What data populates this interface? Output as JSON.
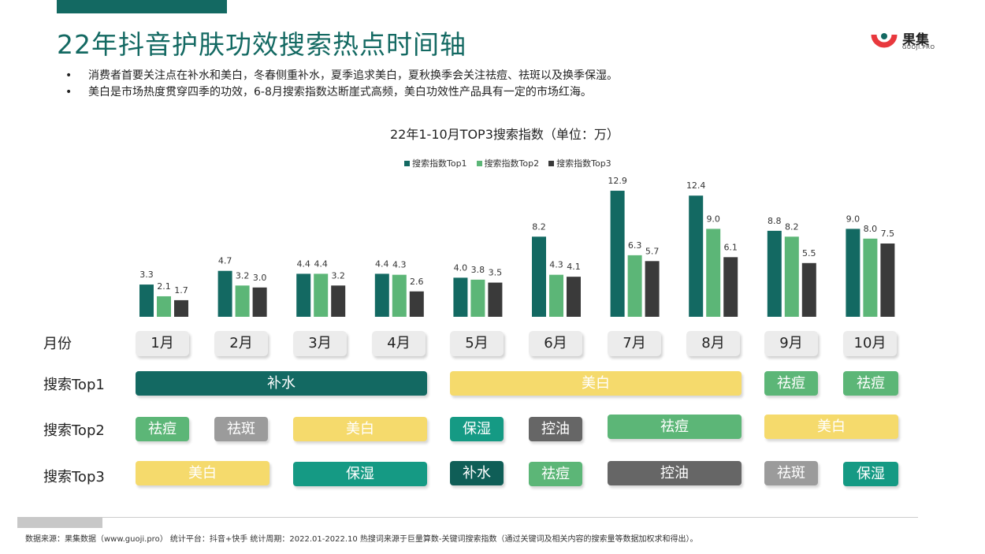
{
  "title": "22年抖音护肤功效搜索热点时间轴",
  "logo": {
    "name": "果集",
    "sub": "GUOJI.PRO"
  },
  "bullets": [
    "消费者首要关注点在补水和美白，冬春侧重补水，夏季追求美白，夏秋换季会关注祛痘、祛斑以及换季保湿。",
    "美白是市场热度贯穿四季的功效，6-8月搜索指数达断崖式高频，美白功效性产品具有一定的市场红海。"
  ],
  "colors": {
    "top1": "#136962",
    "top2": "#5cb677",
    "top3": "#3a3a3a"
  },
  "chart_data": {
    "type": "bar",
    "title": "22年1-10月TOP3搜索指数（单位：万）",
    "categories": [
      "1月",
      "2月",
      "3月",
      "4月",
      "5月",
      "6月",
      "7月",
      "8月",
      "9月",
      "10月"
    ],
    "series": [
      {
        "name": "搜索指数Top1",
        "values": [
          3.3,
          4.7,
          4.4,
          4.4,
          4.0,
          8.2,
          12.9,
          12.4,
          8.8,
          9.0
        ]
      },
      {
        "name": "搜索指数Top2",
        "values": [
          2.1,
          3.2,
          4.4,
          4.3,
          3.8,
          4.3,
          6.3,
          9.0,
          8.2,
          8.0
        ]
      },
      {
        "name": "搜索指数Top3",
        "values": [
          1.7,
          3.0,
          3.2,
          2.6,
          3.5,
          4.1,
          5.7,
          6.1,
          5.5,
          7.5
        ]
      }
    ],
    "ylim": [
      0,
      13
    ],
    "grid": false,
    "legend_position": "top"
  },
  "rows": {
    "month": "月份",
    "top1": "搜索Top1",
    "top2": "搜索Top2",
    "top3": "搜索Top3"
  },
  "months": [
    "1月",
    "2月",
    "3月",
    "4月",
    "5月",
    "6月",
    "7月",
    "8月",
    "9月",
    "10月"
  ],
  "top1_tags": [
    {
      "label": "补水",
      "color": "dark"
    },
    {
      "label": "美白",
      "color": "yellow"
    },
    {
      "label": "祛痘",
      "color": "green"
    },
    {
      "label": "祛痘",
      "color": "green"
    }
  ],
  "top2_tags": [
    {
      "label": "祛痘",
      "color": "green"
    },
    {
      "label": "祛斑",
      "color": "grey"
    },
    {
      "label": "美白",
      "color": "yellow"
    },
    {
      "label": "保湿",
      "color": "teal"
    },
    {
      "label": "控油",
      "color": "dkgrey"
    },
    {
      "label": "祛痘",
      "color": "green"
    },
    {
      "label": "美白",
      "color": "yellow"
    }
  ],
  "top3_tags": [
    {
      "label": "美白",
      "color": "yellow"
    },
    {
      "label": "保湿",
      "color": "teal"
    },
    {
      "label": "补水",
      "color": "deep"
    },
    {
      "label": "祛痘",
      "color": "green"
    },
    {
      "label": "控油",
      "color": "dkgrey"
    },
    {
      "label": "祛斑",
      "color": "grey"
    },
    {
      "label": "保湿",
      "color": "teal"
    }
  ],
  "footer": "数据来源：果集数据（www.guoji.pro） 统计平台：抖音+快手 统计周期：2022.01-2022.10 热搜词来源于巨量算数-关键词搜索指数（通过关键词及相关内容的搜索量等数据加权求和得出）。"
}
